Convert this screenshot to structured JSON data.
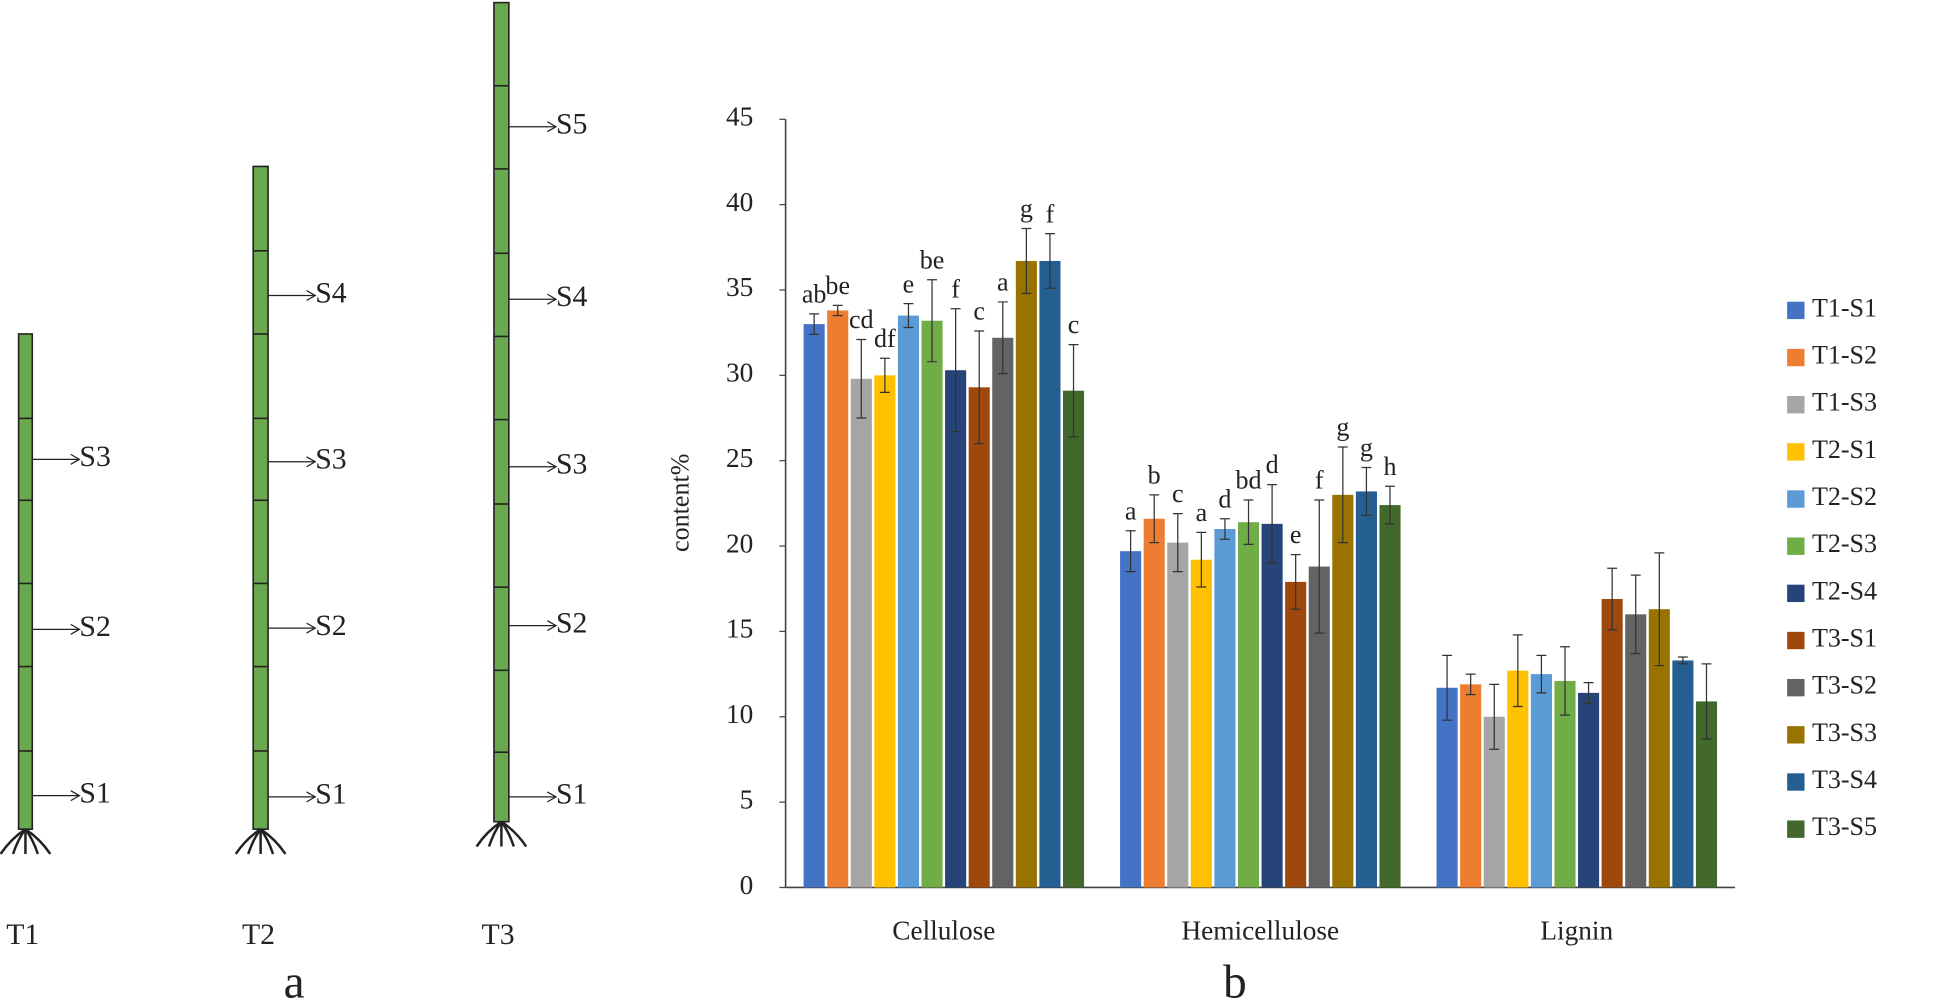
{
  "diagram": {
    "stems": [
      {
        "name": "T1",
        "sections": [
          "S1",
          "S2",
          "S3"
        ]
      },
      {
        "name": "T2",
        "sections": [
          "S1",
          "S2",
          "S3",
          "S4"
        ]
      },
      {
        "name": "T3",
        "sections": [
          "S1",
          "S2",
          "S3",
          "S4",
          "S5"
        ]
      }
    ],
    "panels": [
      "a",
      "b"
    ]
  },
  "chart_data": {
    "type": "bar",
    "y_label": "content%",
    "categories": [
      "Cellulose",
      "Hemicellulose",
      "Lignin"
    ],
    "ylim": [
      0,
      45
    ],
    "yticks": [
      0,
      5,
      10,
      15,
      20,
      25,
      30,
      35,
      40,
      45
    ],
    "series": [
      {
        "name": "T1-S1",
        "color": "#4472c4",
        "values": [
          33,
          19.7,
          11.7
        ],
        "errors": [
          0.6,
          1.2,
          1.9
        ],
        "labels": [
          "ab",
          "a",
          null
        ]
      },
      {
        "name": "T1-S2",
        "color": "#ed7d31",
        "values": [
          33.8,
          21.6,
          11.9
        ],
        "errors": [
          0.3,
          1.4,
          0.6
        ],
        "labels": [
          "be",
          "b",
          null
        ]
      },
      {
        "name": "T1-S3",
        "color": "#a5a5a5",
        "values": [
          29.8,
          20.2,
          10
        ],
        "errors": [
          2.3,
          1.7,
          1.9
        ],
        "labels": [
          "cd",
          "c",
          null
        ]
      },
      {
        "name": "T2-S1",
        "color": "#ffc000",
        "values": [
          30,
          19.2,
          12.7
        ],
        "errors": [
          1,
          1.6,
          2.1
        ],
        "labels": [
          "df",
          "a",
          null
        ]
      },
      {
        "name": "T2-S2",
        "color": "#5b9bd5",
        "values": [
          33.5,
          21,
          12.5
        ],
        "errors": [
          0.7,
          0.6,
          1.1
        ],
        "labels": [
          "e",
          "d",
          null
        ]
      },
      {
        "name": "T2-S3",
        "color": "#70ad47",
        "values": [
          33.2,
          21.4,
          12.1
        ],
        "errors": [
          2.4,
          1.3,
          2
        ],
        "labels": [
          "be",
          "bd",
          null
        ]
      },
      {
        "name": "T2-S4",
        "color": "#264478",
        "values": [
          30.3,
          21.3,
          11.4
        ],
        "errors": [
          3.6,
          2.3,
          0.6
        ],
        "labels": [
          "f",
          "d",
          null
        ]
      },
      {
        "name": "T3-S1",
        "color": "#9e480e",
        "values": [
          29.3,
          17.9,
          16.9
        ],
        "errors": [
          3.3,
          1.6,
          1.8
        ],
        "labels": [
          "c",
          "e",
          null
        ]
      },
      {
        "name": "T3-S2",
        "color": "#636363",
        "values": [
          32.2,
          18.8,
          16
        ],
        "errors": [
          2.1,
          3.9,
          2.3
        ],
        "labels": [
          "a",
          "f",
          null
        ]
      },
      {
        "name": "T3-S3",
        "color": "#997300",
        "values": [
          36.7,
          23,
          16.3
        ],
        "errors": [
          1.9,
          2.8,
          3.3
        ],
        "labels": [
          "g",
          "g",
          null
        ]
      },
      {
        "name": "T3-S4",
        "color": "#255e91",
        "values": [
          36.7,
          23.2,
          13.3
        ],
        "errors": [
          1.6,
          1.4,
          0.2
        ],
        "labels": [
          "f",
          "g",
          null
        ]
      },
      {
        "name": "T3-S5",
        "color": "#43682b",
        "values": [
          29.1,
          22.4,
          10.9
        ],
        "errors": [
          2.7,
          1.1,
          2.2
        ],
        "labels": [
          "c",
          "h",
          null
        ]
      }
    ]
  }
}
